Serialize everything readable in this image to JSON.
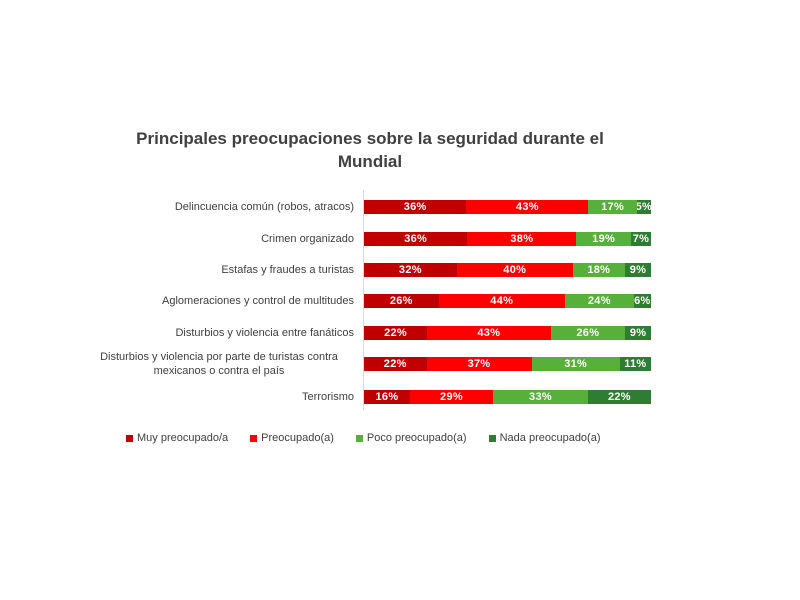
{
  "chart_data": {
    "type": "bar",
    "orientation": "horizontal",
    "stacked": "percent",
    "title": "Principales preocupaciones sobre la seguridad durante el Mundial",
    "categories": [
      "Delincuencia común (robos, atracos)",
      "Crimen organizado",
      "Estafas y fraudes a turistas",
      "Aglomeraciones y control de multitudes",
      "Disturbios y violencia entre fanáticos",
      "Disturbios y violencia por parte de turistas contra mexicanos o contra el país",
      "Terrorismo"
    ],
    "series": [
      {
        "name": "Muy preocupado/a",
        "color": "#c00000",
        "values": [
          36,
          36,
          32,
          26,
          22,
          22,
          16
        ]
      },
      {
        "name": "Preocupado(a)",
        "color": "#ff0000",
        "values": [
          43,
          38,
          40,
          44,
          43,
          37,
          29
        ]
      },
      {
        "name": "Poco preocupado(a)",
        "color": "#56b039",
        "values": [
          17,
          19,
          18,
          24,
          26,
          31,
          33
        ]
      },
      {
        "name": "Nada preocupado(a)",
        "color": "#2e7d32",
        "values": [
          5,
          7,
          9,
          6,
          9,
          11,
          22
        ]
      }
    ],
    "value_suffix": "%",
    "legend_position": "bottom",
    "grid": false
  }
}
